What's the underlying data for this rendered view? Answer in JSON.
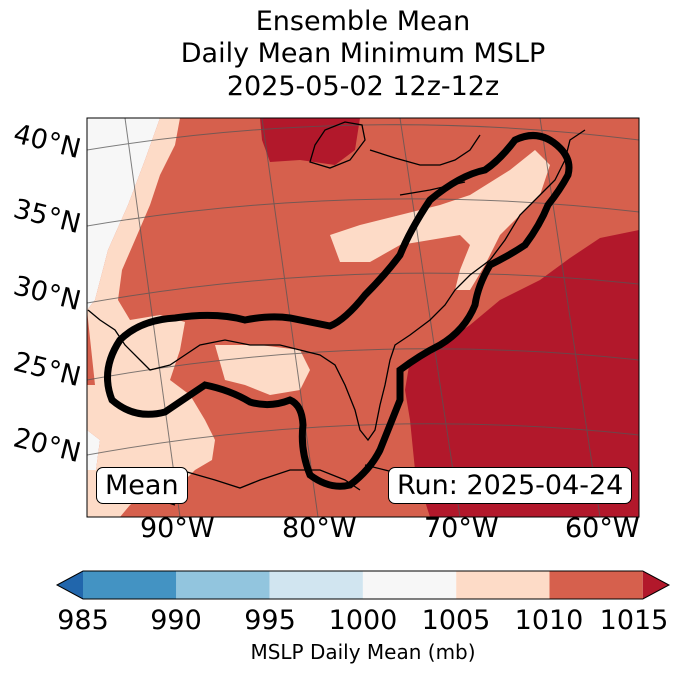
{
  "title": {
    "line1": "Ensemble Mean",
    "line2": "Daily Mean Minimum MSLP",
    "line3": "2025-05-02 12z-12z"
  },
  "latitude_labels": [
    "40°N",
    "35°N",
    "30°N",
    "25°N",
    "20°N"
  ],
  "longitude_labels": [
    "90°W",
    "80°W",
    "70°W",
    "60°W"
  ],
  "panel_labels": {
    "left": "Mean",
    "right": "Run: 2025-04-24"
  },
  "colorbar": {
    "label": "MSLP Daily Mean (mb)",
    "ticks": [
      "985",
      "990",
      "995",
      "1000",
      "1005",
      "1010",
      "1015"
    ],
    "colors": {
      "under": "#2166ac",
      "c985": "#4393c3",
      "c990": "#92c5de",
      "c995": "#d1e5f0",
      "c1000": "#f7f7f7",
      "c1005": "#fddbc7",
      "c1010": "#d6604d",
      "over": "#b2182b"
    }
  },
  "map_colors": {
    "low": "#f7f7f7",
    "mid": "#fddbc7",
    "high": "#d6604d",
    "max": "#b2182b",
    "edge": "#92c5de"
  }
}
